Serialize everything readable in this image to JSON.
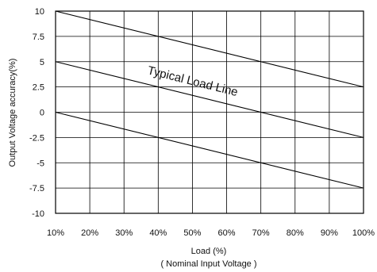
{
  "chart_data": {
    "type": "line",
    "title": "",
    "xlabel": "Load (%)",
    "xlabel_sub": "( Nominal Input Voltage )",
    "ylabel": "Output Voltage accuracy(%)",
    "x": [
      10,
      100
    ],
    "x_tick_labels": [
      "10%",
      "20%",
      "30%",
      "40%",
      "50%",
      "60%",
      "70%",
      "80%",
      "90%",
      "100%"
    ],
    "y_tick_labels": [
      "10",
      "7.5",
      "5",
      "2.5",
      "0",
      "-2.5",
      "-5",
      "-7.5",
      "-10"
    ],
    "xlim": [
      10,
      100
    ],
    "ylim": [
      -10,
      10
    ],
    "grid": true,
    "series": [
      {
        "values": [
          10,
          2.5
        ]
      },
      {
        "values": [
          5,
          -2.5
        ]
      },
      {
        "values": [
          0,
          -7.5
        ]
      }
    ],
    "annotation": "Typical Load Line",
    "color": "#000000"
  }
}
